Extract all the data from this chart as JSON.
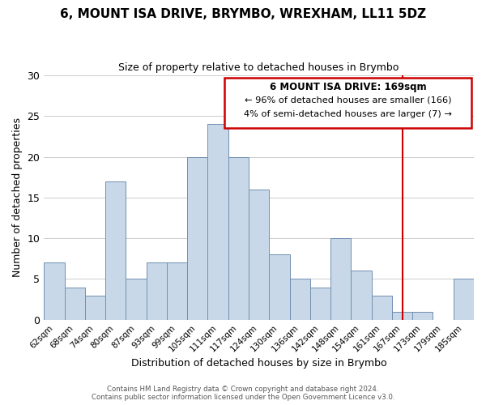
{
  "title": "6, MOUNT ISA DRIVE, BRYMBO, WREXHAM, LL11 5DZ",
  "subtitle": "Size of property relative to detached houses in Brymbo",
  "xlabel": "Distribution of detached houses by size in Brymbo",
  "ylabel": "Number of detached properties",
  "footer_line1": "Contains HM Land Registry data © Crown copyright and database right 2024.",
  "footer_line2": "Contains public sector information licensed under the Open Government Licence v3.0.",
  "bar_labels": [
    "62sqm",
    "68sqm",
    "74sqm",
    "80sqm",
    "87sqm",
    "93sqm",
    "99sqm",
    "105sqm",
    "111sqm",
    "117sqm",
    "124sqm",
    "130sqm",
    "136sqm",
    "142sqm",
    "148sqm",
    "154sqm",
    "161sqm",
    "167sqm",
    "173sqm",
    "179sqm",
    "185sqm"
  ],
  "bar_values": [
    7,
    4,
    3,
    17,
    5,
    7,
    7,
    20,
    24,
    20,
    16,
    8,
    5,
    4,
    10,
    6,
    3,
    1,
    1,
    0,
    5
  ],
  "bar_color": "#c8d8e8",
  "bar_edge_color": "#7090b0",
  "vline_index": 17,
  "vline_color": "#cc0000",
  "annotation_title": "6 MOUNT ISA DRIVE: 169sqm",
  "annotation_line1": "← 96% of detached houses are smaller (166)",
  "annotation_line2": "4% of semi-detached houses are larger (7) →",
  "annotation_box_facecolor": "#ffffff",
  "annotation_box_edgecolor": "#cc0000",
  "ylim": [
    0,
    30
  ],
  "yticks": [
    0,
    5,
    10,
    15,
    20,
    25,
    30
  ],
  "background_color": "#ffffff",
  "grid_color": "#cccccc"
}
